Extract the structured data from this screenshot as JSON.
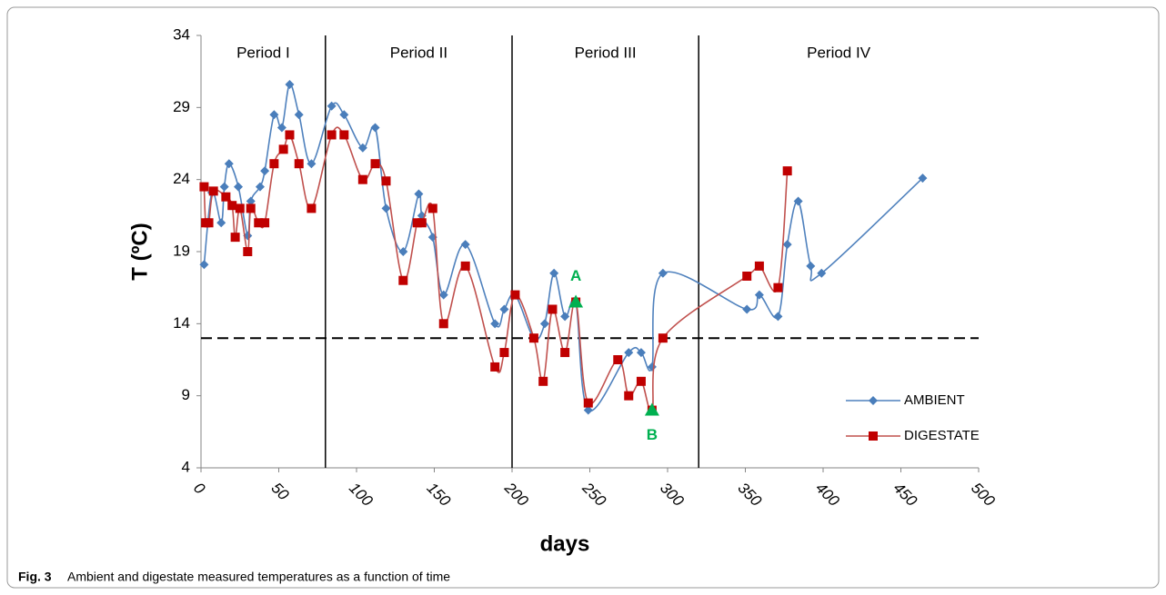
{
  "chart_data": {
    "type": "line",
    "caption_label": "Fig. 3",
    "caption": "Ambient and digestate measured temperatures as a function of time",
    "x_label": "days",
    "y_label": "T (ºC)",
    "xlim": [
      0,
      500
    ],
    "xticks": [
      0,
      50,
      100,
      150,
      200,
      250,
      300,
      350,
      400,
      450,
      500
    ],
    "ylim": [
      4,
      34
    ],
    "yticks": [
      4,
      9,
      14,
      19,
      24,
      29,
      34
    ],
    "legend": "lower right",
    "series": [
      {
        "name": "AMBIENT",
        "color": "#4f81bd",
        "marker": "diamond",
        "x": [
          2,
          7,
          13,
          15,
          18,
          24,
          30,
          32,
          38,
          41,
          47,
          52,
          57,
          63,
          71,
          84,
          92,
          104,
          112,
          119,
          130,
          140,
          142,
          149,
          156,
          170,
          189,
          195,
          202,
          214,
          221,
          227,
          234,
          241,
          249,
          275,
          283,
          290,
          297,
          351,
          359,
          371,
          377,
          384,
          392,
          399,
          464
        ],
        "values": [
          18.1,
          23.1,
          21,
          23.5,
          25.1,
          23.5,
          20.1,
          22.5,
          23.5,
          24.6,
          28.5,
          27.6,
          30.6,
          28.5,
          25.1,
          29.1,
          28.5,
          26.2,
          27.6,
          22,
          19,
          23,
          21.5,
          20,
          16,
          19.5,
          14,
          15,
          16,
          13,
          14,
          17.5,
          14.5,
          15.5,
          8,
          12,
          12,
          11,
          17.5,
          15,
          16,
          14.5,
          19.5,
          22.5,
          18,
          17.5,
          24.1
        ]
      },
      {
        "name": "DIGESTATE",
        "color": "#c0504d",
        "marker": "square",
        "x": [
          2,
          3,
          5,
          8,
          16,
          20,
          22,
          25,
          30,
          32,
          37,
          41,
          47,
          53,
          57,
          63,
          71,
          84,
          92,
          104,
          112,
          119,
          130,
          139,
          142,
          149,
          156,
          170,
          189,
          195,
          202,
          214,
          220,
          226,
          234,
          241,
          249,
          268,
          275,
          283,
          290,
          297,
          351,
          359,
          371,
          377
        ],
        "values": [
          23.5,
          21,
          21,
          23.2,
          22.8,
          22.2,
          20,
          22,
          19,
          22,
          21,
          21,
          25.1,
          26.1,
          27.1,
          25.1,
          22,
          27.1,
          27.1,
          24,
          25.1,
          23.9,
          17,
          21,
          21,
          22,
          14,
          18,
          11,
          12,
          16,
          13,
          10,
          15,
          12,
          15.5,
          8.5,
          11.5,
          9,
          10,
          8,
          13,
          17.3,
          18,
          16.5,
          24.6
        ]
      }
    ],
    "annotations": [
      {
        "label": "A",
        "x": 241,
        "y": 15.5,
        "color": "#00b050"
      },
      {
        "label": "B",
        "x": 290,
        "y": 8,
        "color": "#00b050"
      }
    ],
    "period_bounds": [
      80,
      200,
      320
    ],
    "periods": [
      "Period I",
      "Period II",
      "Period III",
      "Period IV"
    ],
    "threshold": 13
  }
}
